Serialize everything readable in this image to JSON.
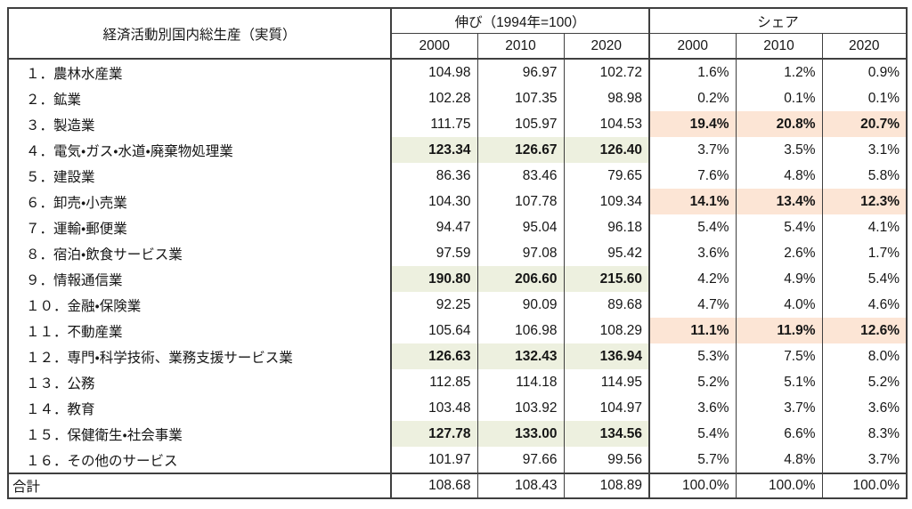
{
  "colors": {
    "growth_highlight": "#edf0df",
    "share_highlight": "#fce5d5",
    "border": "#3f3f3f",
    "text": "#161616"
  },
  "chart_data": {
    "type": "table",
    "title_column_header": "経済活動別国内総生産（実質）",
    "column_groups": [
      {
        "key": "growth",
        "label": "伸び（1994年=100）"
      },
      {
        "key": "share",
        "label": "シェア"
      }
    ],
    "years": [
      "2000",
      "2010",
      "2020"
    ],
    "rows": [
      {
        "label": "１．農林水産業",
        "growth": [
          "104.98",
          "96.97",
          "102.72"
        ],
        "share": [
          "1.6%",
          "1.2%",
          "0.9%"
        ],
        "growth_highlight": false,
        "share_highlight": false
      },
      {
        "label": "２．鉱業",
        "growth": [
          "102.28",
          "107.35",
          "98.98"
        ],
        "share": [
          "0.2%",
          "0.1%",
          "0.1%"
        ],
        "growth_highlight": false,
        "share_highlight": false
      },
      {
        "label": "３．製造業",
        "growth": [
          "111.75",
          "105.97",
          "104.53"
        ],
        "share": [
          "19.4%",
          "20.8%",
          "20.7%"
        ],
        "growth_highlight": false,
        "share_highlight": true
      },
      {
        "label": "４．電気・ガス・水道・廃棄物処理業",
        "growth": [
          "123.34",
          "126.67",
          "126.40"
        ],
        "share": [
          "3.7%",
          "3.5%",
          "3.1%"
        ],
        "growth_highlight": true,
        "share_highlight": false
      },
      {
        "label": "５．建設業",
        "growth": [
          "86.36",
          "83.46",
          "79.65"
        ],
        "share": [
          "7.6%",
          "4.8%",
          "5.8%"
        ],
        "growth_highlight": false,
        "share_highlight": false
      },
      {
        "label": "６．卸売・小売業",
        "growth": [
          "104.30",
          "107.78",
          "109.34"
        ],
        "share": [
          "14.1%",
          "13.4%",
          "12.3%"
        ],
        "growth_highlight": false,
        "share_highlight": true
      },
      {
        "label": "７．運輸・郵便業",
        "growth": [
          "94.47",
          "95.04",
          "96.18"
        ],
        "share": [
          "5.4%",
          "5.4%",
          "4.1%"
        ],
        "growth_highlight": false,
        "share_highlight": false
      },
      {
        "label": "８．宿泊・飲食サービス業",
        "growth": [
          "97.59",
          "97.08",
          "95.42"
        ],
        "share": [
          "3.6%",
          "2.6%",
          "1.7%"
        ],
        "growth_highlight": false,
        "share_highlight": false
      },
      {
        "label": "９．情報通信業",
        "growth": [
          "190.80",
          "206.60",
          "215.60"
        ],
        "share": [
          "4.2%",
          "4.9%",
          "5.4%"
        ],
        "growth_highlight": true,
        "share_highlight": false
      },
      {
        "label": "１０．金融・保険業",
        "growth": [
          "92.25",
          "90.09",
          "89.68"
        ],
        "share": [
          "4.7%",
          "4.0%",
          "4.6%"
        ],
        "growth_highlight": false,
        "share_highlight": false
      },
      {
        "label": "１１．不動産業",
        "growth": [
          "105.64",
          "106.98",
          "108.29"
        ],
        "share": [
          "11.1%",
          "11.9%",
          "12.6%"
        ],
        "growth_highlight": false,
        "share_highlight": true
      },
      {
        "label": "１２．専門・科学技術、業務支援サービス業",
        "growth": [
          "126.63",
          "132.43",
          "136.94"
        ],
        "share": [
          "5.3%",
          "7.5%",
          "8.0%"
        ],
        "growth_highlight": true,
        "share_highlight": false
      },
      {
        "label": "１３．公務",
        "growth": [
          "112.85",
          "114.18",
          "114.95"
        ],
        "share": [
          "5.2%",
          "5.1%",
          "5.2%"
        ],
        "growth_highlight": false,
        "share_highlight": false
      },
      {
        "label": "１４．教育",
        "growth": [
          "103.48",
          "103.92",
          "104.97"
        ],
        "share": [
          "3.6%",
          "3.7%",
          "3.6%"
        ],
        "growth_highlight": false,
        "share_highlight": false
      },
      {
        "label": "１５．保健衛生・社会事業",
        "growth": [
          "127.78",
          "133.00",
          "134.56"
        ],
        "share": [
          "5.4%",
          "6.6%",
          "8.3%"
        ],
        "growth_highlight": true,
        "share_highlight": false
      },
      {
        "label": "１６．その他のサービス",
        "growth": [
          "101.97",
          "97.66",
          "99.56"
        ],
        "share": [
          "5.7%",
          "4.8%",
          "3.7%"
        ],
        "growth_highlight": false,
        "share_highlight": false
      }
    ],
    "total_row": {
      "label": "合計",
      "growth": [
        "108.68",
        "108.43",
        "108.89"
      ],
      "share": [
        "100.0%",
        "100.0%",
        "100.0%"
      ]
    }
  }
}
